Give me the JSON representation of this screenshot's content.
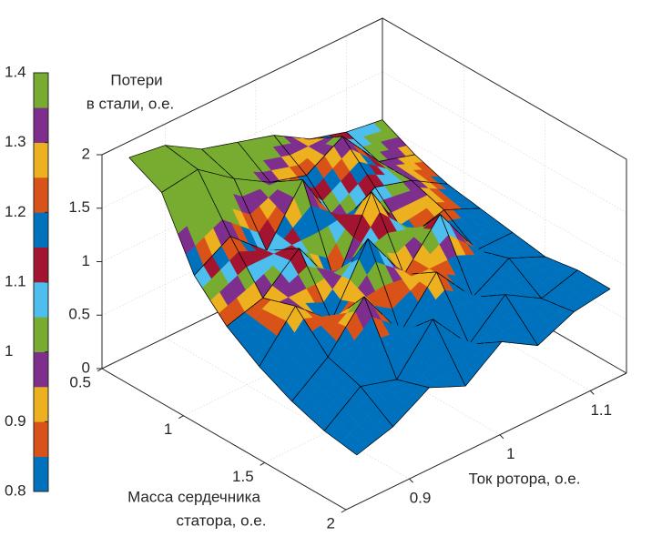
{
  "chart_data": {
    "type": "surface",
    "zlabel": [
      "Потери",
      "в стали, о.е."
    ],
    "xlabel": [
      "Масса сердечника",
      "статора, о.е."
    ],
    "ylabel": "Ток ротора, о.е.",
    "x": [
      0.5,
      0.7,
      0.9,
      1.1,
      1.3,
      1.5,
      1.7,
      1.9
    ],
    "y": [
      0.86,
      0.9,
      0.94,
      0.98,
      1.02,
      1.06,
      1.1,
      1.14
    ],
    "z": [
      [
        1.85,
        1.8,
        1.6,
        1.5,
        1.4,
        1.2,
        1.1,
        1.05
      ],
      [
        1.7,
        1.75,
        1.5,
        1.3,
        1.2,
        1.4,
        1.0,
        0.9
      ],
      [
        1.1,
        1.3,
        1.0,
        1.5,
        0.9,
        1.1,
        1.0,
        0.8
      ],
      [
        0.8,
        0.9,
        1.2,
        0.7,
        1.4,
        0.8,
        0.9,
        0.75
      ],
      [
        0.6,
        1.0,
        0.7,
        1.3,
        0.8,
        1.2,
        0.7,
        0.7
      ],
      [
        0.45,
        0.7,
        1.1,
        0.6,
        1.0,
        0.6,
        0.8,
        0.65
      ],
      [
        0.35,
        0.6,
        0.5,
        0.9,
        0.5,
        0.8,
        0.6,
        0.7
      ],
      [
        0.3,
        0.4,
        0.6,
        0.45,
        0.7,
        0.5,
        0.65,
        0.7
      ]
    ],
    "xlim": [
      0.5,
      2
    ],
    "xticks": [
      0.5,
      1,
      1.5,
      2
    ],
    "ylim": [
      0.83,
      1.14
    ],
    "yticks": [
      0.9,
      1,
      1.1
    ],
    "zlim": [
      0,
      2
    ],
    "zticks": [
      0,
      0.5,
      1,
      1.5,
      2
    ],
    "clim": [
      0.8,
      1.4
    ],
    "cticks": [
      0.8,
      0.9,
      1,
      1.1,
      1.2,
      1.3,
      1.4
    ],
    "colormap": [
      "#0072bd",
      "#d95319",
      "#edb120",
      "#7e2f8e",
      "#77ac30",
      "#4dbeee",
      "#a2142f",
      "#0072bd",
      "#d95319",
      "#edb120",
      "#7e2f8e",
      "#77ac30"
    ],
    "grid": true
  }
}
